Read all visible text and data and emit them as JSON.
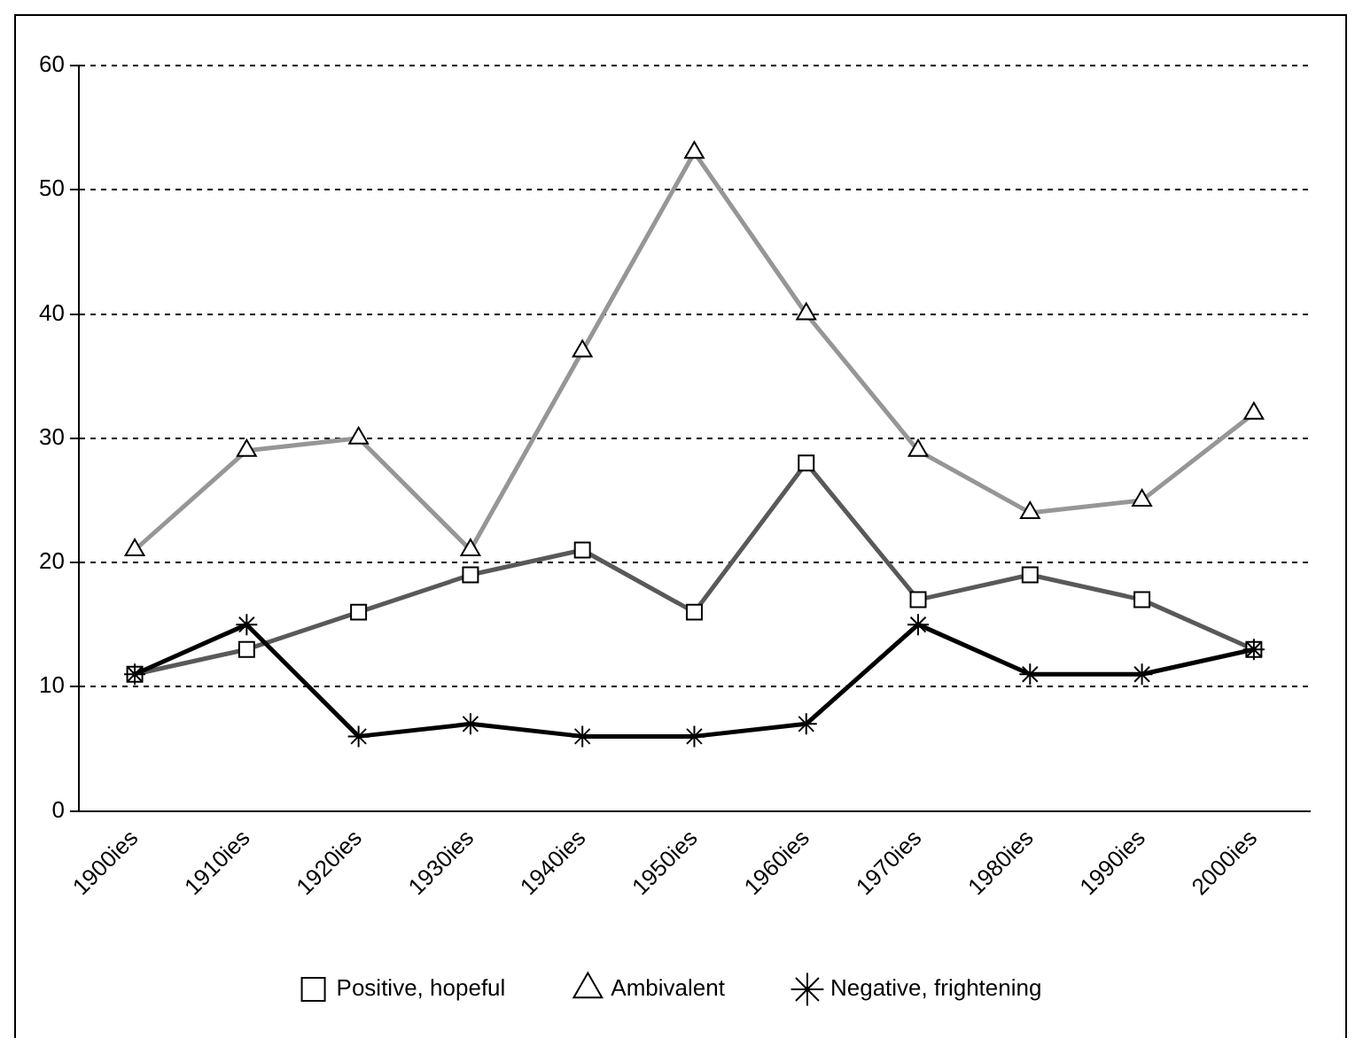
{
  "chart_data": {
    "type": "line",
    "categories": [
      "1900ies",
      "1910ies",
      "1920ies",
      "1930ies",
      "1940ies",
      "1950ies",
      "1960ies",
      "1970ies",
      "1980ies",
      "1990ies",
      "2000ies"
    ],
    "series": [
      {
        "name": "Positive, hopeful",
        "color": "#595959",
        "marker": "square",
        "values": [
          11,
          13,
          16,
          19,
          21,
          16,
          28,
          17,
          19,
          17,
          13
        ]
      },
      {
        "name": "Ambivalent",
        "color": "#969696",
        "marker": "triangle",
        "values": [
          21,
          29,
          30,
          21,
          37,
          53,
          40,
          29,
          24,
          25,
          32
        ]
      },
      {
        "name": "Negative, frightening",
        "color": "#000000",
        "marker": "cross",
        "values": [
          11,
          15,
          6,
          7,
          6,
          6,
          7,
          15,
          11,
          11,
          13
        ]
      }
    ],
    "ylim": [
      0,
      60
    ],
    "yticks": [
      0,
      10,
      20,
      30,
      40,
      50,
      60
    ],
    "grid": "y",
    "legend": "bottom",
    "line_style": "solid"
  }
}
